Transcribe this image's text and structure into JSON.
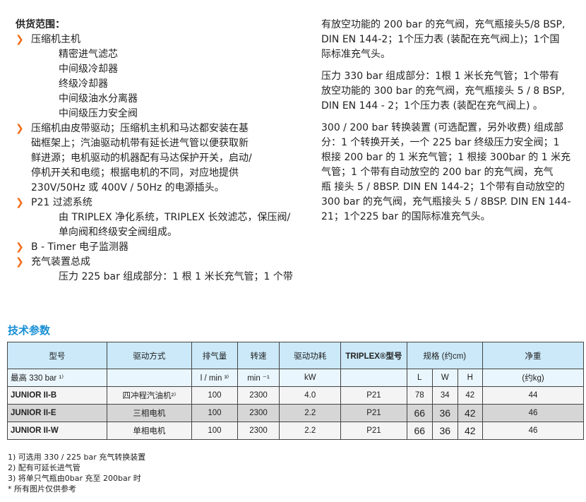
{
  "scope": {
    "title": "供货范围：",
    "items": [
      {
        "label": "压缩机主机",
        "sub": [
          "精密进气滤芯",
          "中间级冷却器",
          "终级冷却器",
          "中间级油水分离器",
          "中间级压力安全阀"
        ]
      },
      {
        "lines": [
          "压缩机由皮带驱动；压缩机主机和马达都安装在基",
          "础框架上；汽油驱动机带有延长进气管以便获取新",
          "鲜进源；电机驱动的机器配有马达保护开关，启动/",
          "停机开关和电缆；根据电机的不同，对应地提供",
          "230V/50Hz 或 400V / 50Hz 的电源插头。"
        ]
      },
      {
        "label": "P21 过滤系统",
        "sub": [
          "由 TRIPLEX 净化系统，TRIPLEX 长效滤芯，保压阀/",
          "单向阀和终级安全阀组成。"
        ]
      },
      {
        "label": "B - Timer 电子监测器"
      },
      {
        "label": "充气装置总成",
        "sub": [
          "压力 225 bar 组成部分：1 根 1 米长充气管；1 个带"
        ]
      }
    ]
  },
  "right": [
    [
      "有放空功能的 200 bar 的充气阀，充气瓶接头5/8 BSP,",
      "DIN EN 144-2；1个压力表 (装配在充气阀上)；1个国",
      "际标准充气头。"
    ],
    [
      "压力 330 bar 组成部分：1根 1 米长充气管；1个带有",
      "放空功能的 300 bar 的充气阀，充气瓶接头 5 / 8 BSP,",
      "DIN EN 144 - 2；1个压力表 (装配在充气阀上) 。"
    ],
    [
      "300 / 200 bar 转换装置 (可选配置，另外收费) 组成部",
      "分：1 个转换开关，一个 225 bar 终级压力安全阀；1",
      "根接 200 bar 的 1 米充气管；1 根接 300bar 的 1 米充",
      "气管；1 个带有自动放空的 200 bar 的充气阀，充气",
      "瓶 接头 5 / 8BSP. DIN EN 144-2；1个带有自动放空的",
      "300 bar 的充气阀，充气瓶接头 5 / 8BSP. DIN EN 144-",
      "21；1个225 bar 的国际标准充气头。"
    ]
  ],
  "tech": {
    "title": "技术参数",
    "header": [
      "型号",
      "驱动方式",
      "排气量",
      "转速",
      "驱动功耗",
      "TRIPLEX®型号",
      "规格 (约cm)",
      "净重"
    ],
    "units": [
      "最高  330 bar ¹⁾",
      "",
      "l / min ³⁾",
      "min ⁻¹",
      "kW",
      "",
      "L",
      "W",
      "H",
      "(约kg)"
    ],
    "rows": [
      [
        "JUNIOR II-B",
        "四冲程汽油机²⁾",
        "100",
        "2300",
        "4.0",
        "P21",
        "78",
        "34",
        "42",
        "44"
      ],
      [
        "JUNIOR II-E",
        "三相电机",
        "100",
        "2300",
        "2.2",
        "P21",
        "66",
        "36",
        "42",
        "46"
      ],
      [
        "JUNIOR II-W",
        "单相电机",
        "100",
        "2300",
        "2.2",
        "P21",
        "66",
        "36",
        "42",
        "46"
      ]
    ]
  },
  "notes": [
    "1) 可选用  330 / 225 bar 充气转换装置",
    "2) 配有可延长进气管",
    "3) 将单只气瓶由0bar 充至 200bar 时",
    "*  所有图片仅供参考"
  ],
  "colors": {
    "bullet": "#f26c1a",
    "heading": "#1a8fd6",
    "header_bg": "#cbe9f9"
  }
}
